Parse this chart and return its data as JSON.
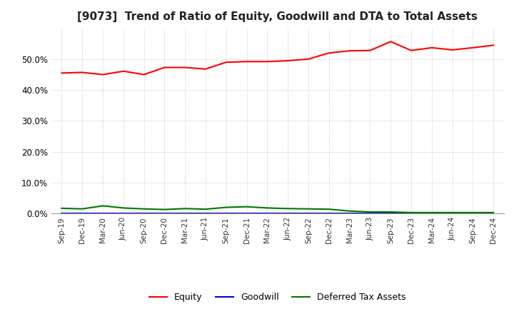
{
  "title": "[9073]  Trend of Ratio of Equity, Goodwill and DTA to Total Assets",
  "x_labels": [
    "Sep-19",
    "Dec-19",
    "Mar-20",
    "Jun-20",
    "Sep-20",
    "Dec-20",
    "Mar-21",
    "Jun-21",
    "Sep-21",
    "Dec-21",
    "Mar-22",
    "Jun-22",
    "Sep-22",
    "Dec-22",
    "Mar-23",
    "Jun-23",
    "Sep-23",
    "Dec-23",
    "Mar-24",
    "Jun-24",
    "Sep-24",
    "Dec-24"
  ],
  "equity": [
    0.455,
    0.457,
    0.45,
    0.461,
    0.45,
    0.473,
    0.473,
    0.468,
    0.49,
    0.492,
    0.492,
    0.495,
    0.5,
    0.52,
    0.527,
    0.528,
    0.557,
    0.528,
    0.537,
    0.53,
    0.537,
    0.545
  ],
  "goodwill": [
    0.0,
    0.0,
    0.0,
    0.0,
    0.0,
    0.0,
    0.0,
    0.0,
    0.0,
    0.0,
    0.0,
    0.0,
    0.0,
    0.0,
    0.0,
    0.0,
    0.0,
    0.0,
    0.0,
    0.0,
    0.0,
    0.0
  ],
  "dta": [
    0.017,
    0.015,
    0.025,
    0.018,
    0.015,
    0.013,
    0.016,
    0.014,
    0.02,
    0.022,
    0.018,
    0.016,
    0.015,
    0.014,
    0.008,
    0.005,
    0.005,
    0.003,
    0.003,
    0.003,
    0.003,
    0.003
  ],
  "equity_color": "#FF0000",
  "goodwill_color": "#0000CC",
  "dta_color": "#007700",
  "background_color": "#FFFFFF",
  "plot_background": "#FFFFFF",
  "grid_color": "#BBBBBB",
  "title_fontsize": 11,
  "ylim": [
    0.0,
    0.6
  ],
  "yticks": [
    0.0,
    0.1,
    0.2,
    0.3,
    0.4,
    0.5
  ],
  "legend_labels": [
    "Equity",
    "Goodwill",
    "Deferred Tax Assets"
  ],
  "line_width": 1.5
}
